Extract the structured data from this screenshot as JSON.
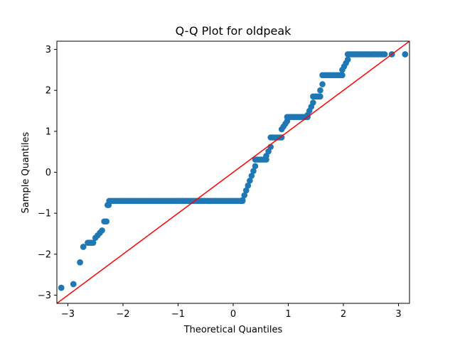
{
  "chart_data": {
    "type": "scatter",
    "title": "Q-Q Plot for oldpeak",
    "xlabel": "Theoretical Quantiles",
    "ylabel": "Sample Quantiles",
    "xlim": [
      -3.2,
      3.2
    ],
    "ylim": [
      -3.2,
      3.2
    ],
    "xticks": [
      -3,
      -2,
      -1,
      0,
      1,
      2,
      3
    ],
    "yticks": [
      -3,
      -2,
      -1,
      0,
      1,
      2,
      3
    ],
    "xtick_labels": [
      "−3",
      "−2",
      "−1",
      "0",
      "1",
      "2",
      "3"
    ],
    "ytick_labels": [
      "−3",
      "−2",
      "−1",
      "0",
      "1",
      "2",
      "3"
    ],
    "grid": false,
    "marker_color": "#1f77b4",
    "line_color": "#ff0000",
    "reference_line": {
      "x": [
        -3.2,
        3.2
      ],
      "y": [
        -3.2,
        3.2
      ]
    },
    "segments": [
      {
        "x": [
          -3.12,
          -3.12
        ],
        "y": [
          -2.82,
          -2.82
        ]
      },
      {
        "x": [
          -2.9,
          -2.9
        ],
        "y": [
          -2.73,
          -2.73
        ]
      },
      {
        "x": [
          -2.78,
          -2.78
        ],
        "y": [
          -2.2,
          -2.2
        ]
      },
      {
        "x": [
          -2.72,
          -2.72
        ],
        "y": [
          -1.82,
          -1.82
        ]
      },
      {
        "x": [
          -2.64,
          -2.54
        ],
        "y": [
          -1.72,
          -1.72
        ]
      },
      {
        "x": [
          -2.5,
          -2.38
        ],
        "y": [
          -1.6,
          -1.42
        ]
      },
      {
        "x": [
          -2.34,
          -2.3
        ],
        "y": [
          -1.2,
          -1.2
        ]
      },
      {
        "x": [
          -2.28,
          -2.26
        ],
        "y": [
          -0.8,
          -0.8
        ]
      },
      {
        "x": [
          -2.25,
          0.17
        ],
        "y": [
          -0.7,
          -0.7
        ]
      },
      {
        "x": [
          0.17,
          0.4
        ],
        "y": [
          -0.68,
          0.15
        ]
      },
      {
        "x": [
          0.4,
          0.6
        ],
        "y": [
          0.31,
          0.31
        ]
      },
      {
        "x": [
          0.6,
          0.68
        ],
        "y": [
          0.4,
          0.62
        ]
      },
      {
        "x": [
          0.68,
          0.88
        ],
        "y": [
          0.85,
          0.85
        ]
      },
      {
        "x": [
          0.88,
          0.98
        ],
        "y": [
          1.05,
          1.25
        ]
      },
      {
        "x": [
          0.98,
          1.35
        ],
        "y": [
          1.35,
          1.35
        ]
      },
      {
        "x": [
          1.35,
          1.45
        ],
        "y": [
          1.4,
          1.7
        ]
      },
      {
        "x": [
          1.45,
          1.58
        ],
        "y": [
          1.85,
          1.85
        ]
      },
      {
        "x": [
          1.58,
          1.62
        ],
        "y": [
          2.0,
          2.15
        ]
      },
      {
        "x": [
          1.62,
          1.98
        ],
        "y": [
          2.37,
          2.37
        ]
      },
      {
        "x": [
          1.98,
          2.08
        ],
        "y": [
          2.5,
          2.75
        ]
      },
      {
        "x": [
          2.08,
          2.75
        ],
        "y": [
          2.88,
          2.88
        ]
      },
      {
        "x": [
          2.88,
          2.88
        ],
        "y": [
          2.88,
          2.88
        ]
      },
      {
        "x": [
          3.12,
          3.12
        ],
        "y": [
          2.88,
          2.88
        ]
      }
    ]
  }
}
